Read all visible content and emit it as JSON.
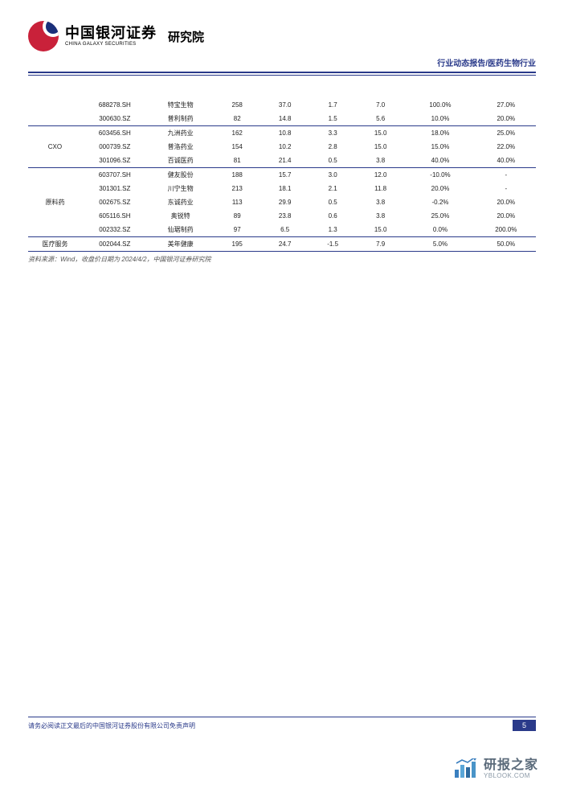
{
  "header": {
    "logo_cn": "中国银河证券",
    "logo_en": "CHINA GALAXY SECURITIES",
    "institute": "研究院",
    "subtitle": "行业动态报告/医药生物行业"
  },
  "table": {
    "colors": {
      "border": "#2a3a8a",
      "text": "#222222",
      "bg": "#ffffff"
    },
    "fontsize": 8,
    "col_widths_pct": [
      9,
      11,
      11,
      8,
      8,
      8,
      8,
      12,
      10
    ],
    "groups": [
      {
        "category": "",
        "rows": [
          [
            "",
            "688278.SH",
            "特宝生物",
            "258",
            "37.0",
            "1.7",
            "7.0",
            "100.0%",
            "27.0%"
          ],
          [
            "",
            "300630.SZ",
            "普利制药",
            "82",
            "14.8",
            "1.5",
            "5.6",
            "10.0%",
            "20.0%"
          ]
        ]
      },
      {
        "category": "CXO",
        "rows": [
          [
            "",
            "603456.SH",
            "九洲药业",
            "162",
            "10.8",
            "3.3",
            "15.0",
            "18.0%",
            "25.0%"
          ],
          [
            "CXO",
            "000739.SZ",
            "普洛药业",
            "154",
            "10.2",
            "2.8",
            "15.0",
            "15.0%",
            "22.0%"
          ],
          [
            "",
            "301096.SZ",
            "百诚医药",
            "81",
            "21.4",
            "0.5",
            "3.8",
            "40.0%",
            "40.0%"
          ]
        ]
      },
      {
        "category": "原料药",
        "rows": [
          [
            "",
            "603707.SH",
            "健友股份",
            "188",
            "15.7",
            "3.0",
            "12.0",
            "-10.0%",
            "-"
          ],
          [
            "",
            "301301.SZ",
            "川宁生物",
            "213",
            "18.1",
            "2.1",
            "11.8",
            "20.0%",
            "-"
          ],
          [
            "原料药",
            "002675.SZ",
            "东诚药业",
            "113",
            "29.9",
            "0.5",
            "3.8",
            "-0.2%",
            "20.0%"
          ],
          [
            "",
            "605116.SH",
            "奥锐特",
            "89",
            "23.8",
            "0.6",
            "3.8",
            "25.0%",
            "20.0%"
          ],
          [
            "",
            "002332.SZ",
            "仙琚制药",
            "97",
            "6.5",
            "1.3",
            "15.0",
            "0.0%",
            "200.0%"
          ]
        ]
      },
      {
        "category": "医疗服务",
        "rows": [
          [
            "医疗服务",
            "002044.SZ",
            "美年健康",
            "195",
            "24.7",
            "-1.5",
            "7.9",
            "5.0%",
            "50.0%"
          ]
        ]
      }
    ],
    "source_note": "资料来源：Wind，收盘价日期为 2024/4/2，中国银河证券研究院"
  },
  "footer": {
    "disclaimer": "请务必阅读正文最后的中国银河证券股份有限公司免责声明",
    "page_number": "5"
  },
  "watermark": {
    "cn": "研报之家",
    "en": "YBLOOK.COM",
    "bar_colors": [
      "#3a7fbf",
      "#5aa6d8",
      "#2e6ba0",
      "#4a94c8"
    ]
  }
}
